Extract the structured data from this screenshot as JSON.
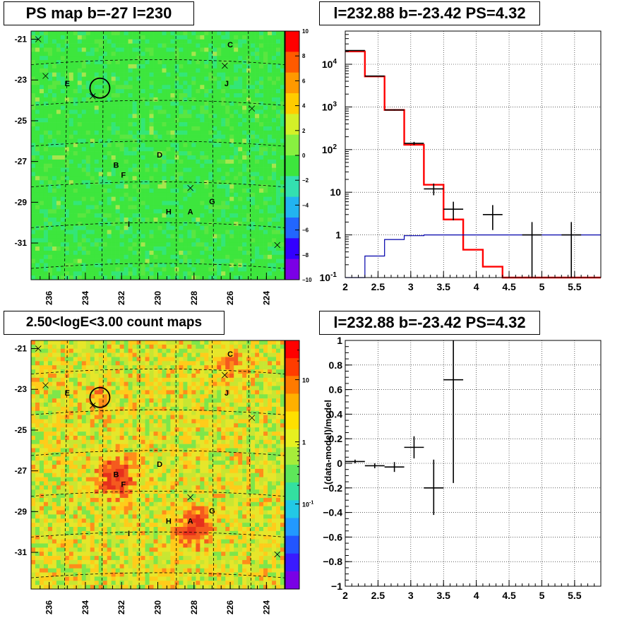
{
  "panels": {
    "ps_map": {
      "title": "PS map b=-27 l=230"
    },
    "spectrum": {
      "title": "l=232.88 b=-23.42 PS=4.32"
    },
    "count_map": {
      "title": "2.50<logE<3.00 count maps"
    },
    "residual": {
      "title": "l=232.88 b=-23.42 PS=4.32"
    }
  },
  "chart_data": [
    {
      "type": "heatmap",
      "panel": "ps_map",
      "title": "PS map b=-27 l=230",
      "x_ticks": [
        "236",
        "234",
        "232",
        "230",
        "228",
        "226",
        "224"
      ],
      "y_ticks": [
        "-21",
        "-23",
        "-25",
        "-27",
        "-29",
        "-31"
      ],
      "colorbar_ticks": [
        "10",
        "8",
        "6",
        "4",
        "2",
        "0",
        "−2",
        "−4",
        "−6",
        "−8",
        "−10"
      ],
      "colorbar_range": [
        -10,
        10
      ],
      "colors": {
        "background": "#3de63d",
        "circle": "#000000"
      },
      "source_labels": [
        "C",
        "J",
        "E",
        "D",
        "B",
        "F",
        "G",
        "H",
        "A",
        "I"
      ],
      "highlight_circle": {
        "l": 233.2,
        "b": -23.4
      }
    },
    {
      "type": "line",
      "panel": "spectrum",
      "title": "l=232.88 b=-23.42 PS=4.32",
      "xlim": [
        2,
        5.9
      ],
      "ylim": [
        0.1,
        60000
      ],
      "yscale": "log",
      "grid": true,
      "x_ticks": [
        "2",
        "2.5",
        "3",
        "3.5",
        "4",
        "4.5",
        "5",
        "5.5"
      ],
      "y_ticks": [
        "10^-1",
        "1",
        "10",
        "10^2",
        "10^3",
        "10^4"
      ],
      "bin_edges": [
        2.0,
        2.3,
        2.6,
        2.9,
        3.2,
        3.5,
        3.8,
        4.1,
        4.4,
        4.7,
        5.0,
        5.3,
        5.6,
        5.9
      ],
      "series": [
        {
          "color": "#ff0000",
          "values": [
            20000,
            5200,
            850,
            130,
            15,
            2.3,
            0.45,
            0.18,
            0.1,
            0.1,
            0.1,
            0.1,
            0.1
          ]
        },
        {
          "color": "#0000aa",
          "values": [
            0.1,
            0.32,
            0.78,
            0.96,
            1.0,
            1.0,
            1.0,
            1.0,
            1.0,
            1.0,
            1.0,
            1.0,
            1.0
          ]
        }
      ],
      "data_points": [
        {
          "x": 2.15,
          "y": 21000,
          "xerr": 0.15,
          "ylo": 20800,
          "yhi": 21200
        },
        {
          "x": 2.45,
          "y": 5300,
          "xerr": 0.15,
          "ylo": 5200,
          "yhi": 5400
        },
        {
          "x": 2.75,
          "y": 850,
          "xerr": 0.15,
          "ylo": 820,
          "yhi": 880
        },
        {
          "x": 3.05,
          "y": 140,
          "xerr": 0.15,
          "ylo": 128,
          "yhi": 152
        },
        {
          "x": 3.35,
          "y": 12,
          "xerr": 0.15,
          "ylo": 8.5,
          "yhi": 16
        },
        {
          "x": 3.65,
          "y": 4,
          "xerr": 0.15,
          "ylo": 2.2,
          "yhi": 6
        },
        {
          "x": 4.25,
          "y": 3,
          "xerr": 0.15,
          "ylo": 1.3,
          "yhi": 5
        },
        {
          "x": 4.85,
          "y": 1,
          "xerr": 0.15,
          "ylo": 0.1,
          "yhi": 2
        },
        {
          "x": 5.45,
          "y": 1,
          "xerr": 0.15,
          "ylo": 0.1,
          "yhi": 2
        }
      ]
    },
    {
      "type": "heatmap",
      "panel": "count_map",
      "title": "2.50<logE<3.00 count maps",
      "x_ticks": [
        "236",
        "234",
        "232",
        "230",
        "228",
        "226",
        "224"
      ],
      "y_ticks": [
        "-21",
        "-23",
        "-25",
        "-27",
        "-29",
        "-31"
      ],
      "colorbar_ticks": [
        "10",
        "1",
        "10^-1"
      ],
      "colorbar_scale": "log",
      "colors": {
        "circle": "#000000"
      },
      "source_labels": [
        "C",
        "J",
        "E",
        "D",
        "B",
        "F",
        "G",
        "H",
        "A",
        "I"
      ],
      "highlight_circle": {
        "l": 233.2,
        "b": -23.4
      }
    },
    {
      "type": "scatter",
      "panel": "residual",
      "title": "l=232.88 b=-23.42 PS=4.32",
      "ylabel": "(data-model)/model",
      "xlim": [
        2,
        5.9
      ],
      "ylim": [
        -1,
        1
      ],
      "grid": true,
      "x_ticks": [
        "2",
        "2.5",
        "3",
        "3.5",
        "4",
        "4.5",
        "5",
        "5.5"
      ],
      "y_ticks": [
        "1",
        "0.8",
        "0.6",
        "0.4",
        "0.2",
        "0",
        "−0.2",
        "−0.4",
        "−0.6",
        "−0.8",
        "−1"
      ],
      "data_points": [
        {
          "x": 2.15,
          "y": 0.015,
          "xerr": 0.15,
          "ylo": 0.0,
          "yhi": 0.03
        },
        {
          "x": 2.45,
          "y": -0.02,
          "xerr": 0.15,
          "ylo": -0.04,
          "yhi": 0.0
        },
        {
          "x": 2.75,
          "y": -0.03,
          "xerr": 0.15,
          "ylo": -0.07,
          "yhi": 0.01
        },
        {
          "x": 3.05,
          "y": 0.13,
          "xerr": 0.15,
          "ylo": 0.04,
          "yhi": 0.22
        },
        {
          "x": 3.35,
          "y": -0.2,
          "xerr": 0.15,
          "ylo": -0.42,
          "yhi": 0.03
        },
        {
          "x": 3.65,
          "y": 0.68,
          "xerr": 0.15,
          "ylo": -0.16,
          "yhi": 1.0
        }
      ]
    }
  ]
}
